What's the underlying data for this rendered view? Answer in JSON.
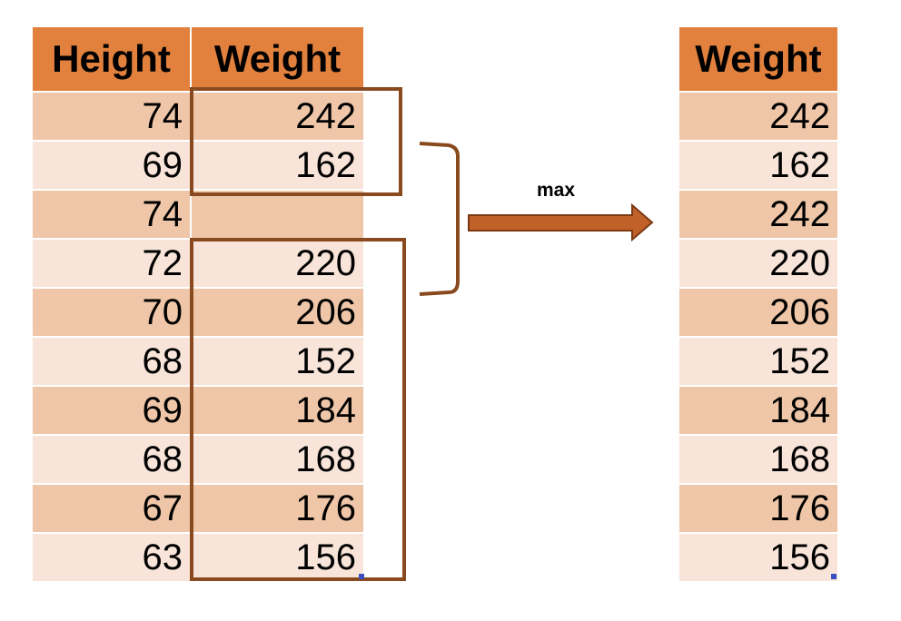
{
  "left_table": {
    "headers": [
      "Height",
      "Weight"
    ],
    "rows": [
      {
        "height": "74",
        "weight": "242"
      },
      {
        "height": "69",
        "weight": "162"
      },
      {
        "height": "74",
        "weight": ""
      },
      {
        "height": "72",
        "weight": "220"
      },
      {
        "height": "70",
        "weight": "206"
      },
      {
        "height": "68",
        "weight": "152"
      },
      {
        "height": "69",
        "weight": "184"
      },
      {
        "height": "68",
        "weight": "168"
      },
      {
        "height": "67",
        "weight": "176"
      },
      {
        "height": "63",
        "weight": "156"
      }
    ]
  },
  "operation": {
    "label": "max"
  },
  "right_table": {
    "header": "Weight",
    "rows": [
      "242",
      "162",
      "242",
      "220",
      "206",
      "152",
      "184",
      "168",
      "176",
      "156"
    ],
    "imputed_row_index": 2,
    "imputed_color": "#c0221a"
  },
  "colors": {
    "header_fill": "#e2813d",
    "row_fill_dark": "#efc7a8",
    "row_fill_light": "#f8e4d8",
    "box_stroke": "#8a4a1f",
    "arrow_fill": "#c0612a"
  }
}
